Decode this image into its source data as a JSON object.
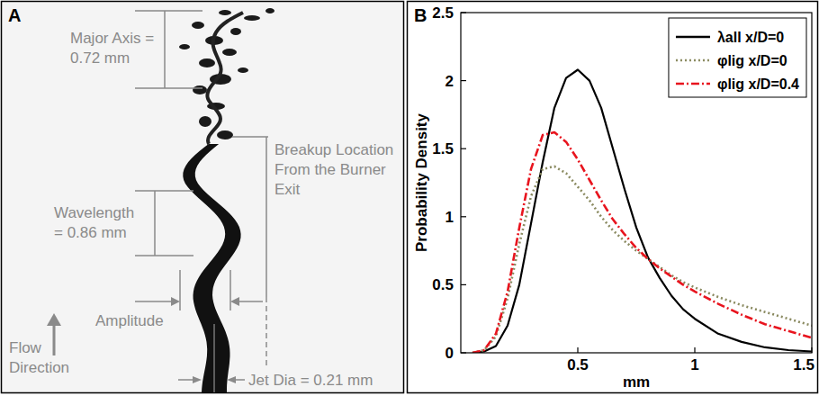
{
  "panel_a": {
    "letter": "A",
    "annotations": {
      "major_axis": "Major Axis = 0.72 mm",
      "breakup": "Breakup Location From the Burner Exit",
      "wavelength": "Wavelength = 0.86 mm",
      "amplitude": "Amplitude",
      "flow": "Flow Direction",
      "jet_dia": "Jet Dia = 0.21 mm"
    }
  },
  "chart_data": {
    "type": "line",
    "panel_label": "B",
    "x_label": "mm",
    "y_label": "Probability Density",
    "x": [
      0.05,
      0.1,
      0.15,
      0.2,
      0.25,
      0.3,
      0.35,
      0.4,
      0.45,
      0.5,
      0.55,
      0.6,
      0.65,
      0.7,
      0.75,
      0.8,
      0.85,
      0.9,
      0.95,
      1.0,
      1.1,
      1.2,
      1.3,
      1.4,
      1.5
    ],
    "xlim": [
      0,
      1.5
    ],
    "xticks": [
      0.5,
      1,
      1.5
    ],
    "ylim": [
      0,
      2.5
    ],
    "yticks": [
      0,
      0.5,
      1,
      1.5,
      2,
      2.5
    ],
    "grid": false,
    "legend": "upper right",
    "series": [
      {
        "name": "λall x/D=0",
        "color": "#000000",
        "line_style": "solid",
        "values": [
          0,
          0.01,
          0.05,
          0.2,
          0.5,
          0.95,
          1.4,
          1.8,
          2.02,
          2.08,
          2.0,
          1.8,
          1.5,
          1.2,
          0.92,
          0.7,
          0.55,
          0.42,
          0.32,
          0.25,
          0.14,
          0.08,
          0.04,
          0.02,
          0.01
        ]
      },
      {
        "name": "φlig x/D=0",
        "color": "#8a8a60",
        "line_style": "dotted",
        "values": [
          0,
          0.02,
          0.12,
          0.4,
          0.8,
          1.15,
          1.35,
          1.37,
          1.32,
          1.22,
          1.12,
          1.0,
          0.9,
          0.82,
          0.75,
          0.69,
          0.63,
          0.57,
          0.52,
          0.48,
          0.41,
          0.35,
          0.3,
          0.25,
          0.2
        ]
      },
      {
        "name": "φlig x/D=0.4",
        "color": "#e8141e",
        "line_style": "dashdot",
        "values": [
          0,
          0.02,
          0.14,
          0.45,
          0.92,
          1.35,
          1.6,
          1.62,
          1.55,
          1.42,
          1.27,
          1.12,
          0.98,
          0.87,
          0.77,
          0.69,
          0.62,
          0.56,
          0.5,
          0.45,
          0.36,
          0.28,
          0.21,
          0.16,
          0.11
        ]
      }
    ]
  }
}
